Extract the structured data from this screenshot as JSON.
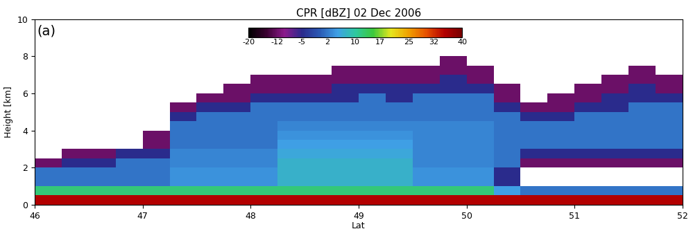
{
  "chart_data": {
    "type": "heatmap",
    "title": "CPR [dBZ] 02 Dec 2006",
    "panel_label": "(a)",
    "x_label": "Lat",
    "y_label": "Height [km]",
    "xlim": [
      46,
      52
    ],
    "xticks": [
      46,
      47,
      48,
      49,
      50,
      51,
      52
    ],
    "ylim": [
      0,
      10
    ],
    "yticks": [
      0,
      2,
      4,
      6,
      8,
      10
    ],
    "x_edges": [
      46.0,
      46.25,
      46.5,
      46.75,
      47.0,
      47.25,
      47.5,
      47.75,
      48.0,
      48.25,
      48.5,
      48.75,
      49.0,
      49.25,
      49.5,
      49.75,
      50.0,
      50.25,
      50.5,
      50.75,
      51.0,
      51.25,
      51.5,
      51.75,
      52.0
    ],
    "y_edges": [
      0.0,
      0.5,
      1.0,
      1.5,
      2.0,
      2.5,
      3.0,
      3.5,
      4.0,
      4.5,
      5.0,
      5.5,
      6.0,
      6.5,
      7.0,
      7.5,
      8.0,
      8.5,
      9.0,
      9.5,
      10.0
    ],
    "cells": [
      [
        35,
        35,
        35,
        35,
        35,
        35,
        35,
        35,
        35,
        35,
        35,
        35,
        35,
        35,
        35,
        35,
        35,
        35,
        35,
        35,
        35,
        35,
        35,
        35
      ],
      [
        12,
        12,
        12,
        12,
        12,
        12,
        12,
        12,
        12,
        12,
        12,
        12,
        12,
        12,
        12,
        12,
        12,
        5,
        2,
        2,
        2,
        2,
        2,
        2
      ],
      [
        2,
        2,
        2,
        2,
        2,
        4,
        4,
        4,
        4,
        7,
        7,
        7,
        7,
        7,
        4,
        4,
        4,
        -5,
        null,
        null,
        null,
        null,
        null,
        null
      ],
      [
        2,
        2,
        2,
        2,
        2,
        4,
        4,
        4,
        4,
        7,
        7,
        7,
        7,
        7,
        4,
        4,
        4,
        -5,
        null,
        null,
        null,
        null,
        null,
        null
      ],
      [
        -12,
        -5,
        -5,
        2,
        2,
        3,
        3,
        3,
        3,
        7,
        7,
        7,
        7,
        7,
        3,
        3,
        3,
        2,
        -12,
        -12,
        -12,
        -12,
        -12,
        -12
      ],
      [
        null,
        -12,
        -12,
        -5,
        -5,
        3,
        3,
        3,
        3,
        6,
        6,
        6,
        6,
        6,
        3,
        3,
        3,
        2,
        -5,
        -5,
        -5,
        -5,
        -5,
        -5
      ],
      [
        null,
        null,
        null,
        null,
        -12,
        2,
        2,
        2,
        2,
        5,
        5,
        5,
        5,
        5,
        3,
        3,
        3,
        2,
        2,
        2,
        2,
        2,
        2,
        2
      ],
      [
        null,
        null,
        null,
        null,
        -12,
        2,
        2,
        2,
        2,
        4,
        4,
        4,
        4,
        4,
        3,
        3,
        3,
        2,
        2,
        2,
        2,
        2,
        2,
        2
      ],
      [
        null,
        null,
        null,
        null,
        null,
        2,
        2,
        2,
        2,
        3,
        3,
        3,
        3,
        3,
        3,
        3,
        3,
        2,
        2,
        2,
        2,
        2,
        2,
        2
      ],
      [
        null,
        null,
        null,
        null,
        null,
        -5,
        2,
        2,
        2,
        2,
        2,
        2,
        2,
        2,
        2,
        2,
        2,
        2,
        -5,
        -5,
        2,
        2,
        2,
        2
      ],
      [
        null,
        null,
        null,
        null,
        null,
        -12,
        -5,
        -5,
        2,
        2,
        2,
        2,
        2,
        2,
        2,
        2,
        2,
        -5,
        -12,
        -12,
        -5,
        -5,
        2,
        2
      ],
      [
        null,
        null,
        null,
        null,
        null,
        null,
        -12,
        -12,
        -5,
        -5,
        -5,
        -5,
        2,
        -5,
        2,
        2,
        2,
        -12,
        null,
        -12,
        -12,
        -5,
        -5,
        -5
      ],
      [
        null,
        null,
        null,
        null,
        null,
        null,
        null,
        -12,
        -12,
        -12,
        -12,
        -5,
        -5,
        -5,
        -5,
        -5,
        -5,
        -12,
        null,
        null,
        -12,
        -12,
        -5,
        -12
      ],
      [
        null,
        null,
        null,
        null,
        null,
        null,
        null,
        null,
        -12,
        -12,
        -12,
        -12,
        -12,
        -12,
        -12,
        -5,
        -12,
        null,
        null,
        null,
        null,
        -12,
        -12,
        -12
      ],
      [
        null,
        null,
        null,
        null,
        null,
        null,
        null,
        null,
        null,
        null,
        null,
        -12,
        -12,
        -12,
        -12,
        -12,
        -12,
        null,
        null,
        null,
        null,
        null,
        -12,
        null
      ],
      [
        null,
        null,
        null,
        null,
        null,
        null,
        null,
        null,
        null,
        null,
        null,
        null,
        null,
        null,
        null,
        -12,
        null,
        null,
        null,
        null,
        null,
        null,
        null,
        null
      ],
      [
        null,
        null,
        null,
        null,
        null,
        null,
        null,
        null,
        null,
        null,
        null,
        null,
        null,
        null,
        null,
        null,
        null,
        null,
        null,
        null,
        null,
        null,
        null,
        null
      ],
      [
        null,
        null,
        null,
        null,
        null,
        null,
        null,
        null,
        null,
        null,
        null,
        null,
        null,
        null,
        null,
        null,
        null,
        null,
        null,
        null,
        null,
        null,
        null,
        null
      ],
      [
        null,
        null,
        null,
        null,
        null,
        null,
        null,
        null,
        null,
        null,
        null,
        null,
        null,
        null,
        null,
        null,
        null,
        null,
        null,
        null,
        null,
        null,
        null,
        null
      ],
      [
        null,
        null,
        null,
        null,
        null,
        null,
        null,
        null,
        null,
        null,
        null,
        null,
        null,
        null,
        null,
        null,
        null,
        null,
        null,
        null,
        null,
        null,
        null,
        null
      ]
    ],
    "colorbar": {
      "range": [
        -20,
        40
      ],
      "ticks": [
        -20,
        -12,
        -5,
        2,
        10,
        17,
        25,
        32,
        40
      ]
    }
  }
}
